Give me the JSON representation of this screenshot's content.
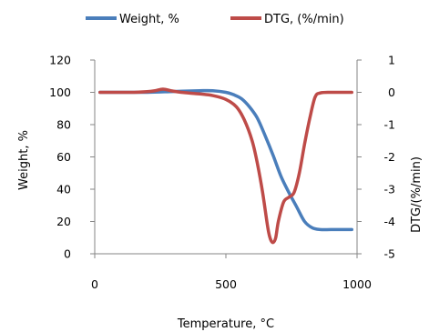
{
  "chart_data": {
    "type": "line",
    "title": "",
    "xlabel": "Temperature, °C",
    "ylabel": "Weight, %",
    "y2label": "DTG/(%/min)",
    "xlim": [
      0,
      1000
    ],
    "ylim": [
      0,
      120
    ],
    "y2lim": [
      -5,
      1
    ],
    "x_ticks": [
      0,
      500,
      1000
    ],
    "y_ticks": [
      0,
      20,
      40,
      60,
      80,
      100,
      120
    ],
    "y2_ticks": [
      -5,
      -4,
      -3,
      -2,
      -1,
      0,
      1
    ],
    "grid": false,
    "legend_position": "top",
    "series": [
      {
        "name": "Weight, %",
        "axis": "left",
        "color": "#4a7ebb",
        "x": [
          20,
          100,
          200,
          300,
          400,
          450,
          500,
          530,
          560,
          590,
          620,
          650,
          680,
          710,
          740,
          770,
          800,
          830,
          860,
          900,
          950,
          980
        ],
        "y": [
          100,
          100,
          100,
          100.5,
          101,
          101,
          100,
          98.5,
          96,
          91,
          84,
          73,
          61,
          48,
          38,
          29,
          20,
          16,
          15,
          15,
          15,
          15
        ]
      },
      {
        "name": "DTG, (%/min)",
        "axis": "right",
        "color": "#be4b48",
        "x": [
          20,
          100,
          150,
          200,
          230,
          260,
          290,
          330,
          400,
          450,
          500,
          540,
          570,
          600,
          620,
          640,
          660,
          670,
          680,
          690,
          700,
          720,
          740,
          760,
          780,
          800,
          820,
          840,
          860,
          900,
          950,
          980
        ],
        "y": [
          0,
          0,
          0,
          0.02,
          0.05,
          0.1,
          0.05,
          0,
          -0.05,
          -0.1,
          -0.22,
          -0.45,
          -0.85,
          -1.5,
          -2.2,
          -3.1,
          -4.2,
          -4.55,
          -4.65,
          -4.5,
          -4.0,
          -3.4,
          -3.25,
          -3.1,
          -2.5,
          -1.6,
          -0.8,
          -0.15,
          -0.02,
          0,
          0,
          0
        ]
      }
    ]
  }
}
